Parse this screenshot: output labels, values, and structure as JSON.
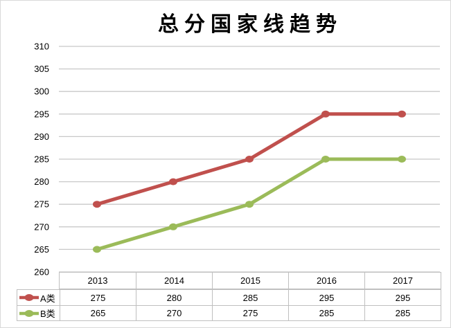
{
  "chart_data": {
    "type": "line",
    "title": "总分国家线趋势",
    "categories": [
      "2013",
      "2014",
      "2015",
      "2016",
      "2017"
    ],
    "series": [
      {
        "name": "A类",
        "color": "#C0504D",
        "values": [
          275,
          280,
          285,
          295,
          295
        ]
      },
      {
        "name": "B类",
        "color": "#9BBB59",
        "values": [
          265,
          270,
          275,
          285,
          285
        ]
      }
    ],
    "yticks": [
      310,
      305,
      300,
      295,
      290,
      285,
      280,
      275,
      270,
      265,
      260
    ],
    "ylim": [
      260,
      310
    ],
    "ytick_step": 5,
    "grid": true,
    "marker": "circle",
    "legend_position": "data-table-left",
    "data_table_shown": true
  },
  "colors": {
    "series_a": "#C0504D",
    "series_b": "#9BBB59",
    "gridline": "#c8c8c8",
    "table_border": "#bfbfbf",
    "frame_border": "#d9d9d9",
    "text": "#000000"
  }
}
